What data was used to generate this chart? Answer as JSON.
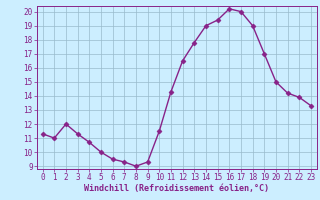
{
  "x": [
    0,
    1,
    2,
    3,
    4,
    5,
    6,
    7,
    8,
    9,
    10,
    11,
    12,
    13,
    14,
    15,
    16,
    17,
    18,
    19,
    20,
    21,
    22,
    23
  ],
  "y": [
    11.3,
    11.0,
    12.0,
    11.3,
    10.7,
    10.0,
    9.5,
    9.3,
    9.0,
    9.3,
    11.5,
    14.3,
    16.5,
    17.8,
    19.0,
    19.4,
    20.2,
    20.0,
    19.0,
    17.0,
    15.0,
    14.2,
    13.9,
    13.3
  ],
  "line_color": "#882288",
  "marker": "D",
  "marker_size": 2.5,
  "bg_color": "#cceeff",
  "grid_color": "#99bbcc",
  "xlabel": "Windchill (Refroidissement éolien,°C)",
  "xlim": [
    -0.5,
    23.5
  ],
  "ylim": [
    8.8,
    20.4
  ],
  "yticks": [
    9,
    10,
    11,
    12,
    13,
    14,
    15,
    16,
    17,
    18,
    19,
    20
  ],
  "xticks": [
    0,
    1,
    2,
    3,
    4,
    5,
    6,
    7,
    8,
    9,
    10,
    11,
    12,
    13,
    14,
    15,
    16,
    17,
    18,
    19,
    20,
    21,
    22,
    23
  ],
  "tick_color": "#882288",
  "label_color": "#882288",
  "xlabel_fontsize": 6.0,
  "tick_fontsize": 5.5
}
